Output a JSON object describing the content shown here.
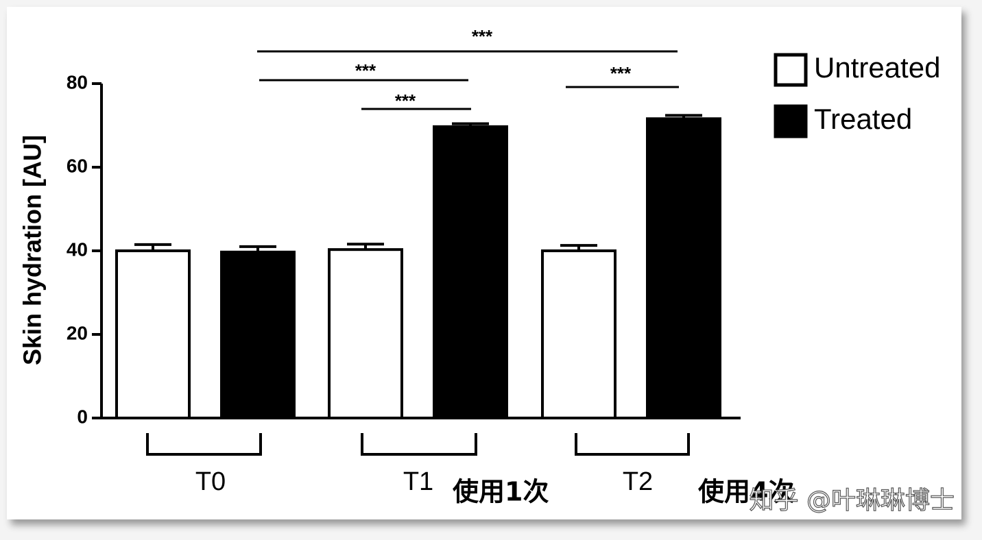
{
  "chart_data": {
    "type": "bar",
    "y_label": "Skin hydration [AU]",
    "categories": [
      "T0",
      "T1",
      "T2"
    ],
    "series": [
      {
        "name": "Untreated",
        "color": "#ffffff",
        "values": [
          40.0,
          40.3,
          40.0
        ],
        "errors": [
          1.5,
          1.3,
          1.3
        ]
      },
      {
        "name": "Treated",
        "color": "#000000",
        "values": [
          39.7,
          69.7,
          71.6
        ],
        "errors": [
          1.3,
          0.7,
          0.8
        ]
      }
    ],
    "ylim": [
      0,
      80
    ],
    "yticks": [
      0,
      20,
      40,
      60,
      80
    ],
    "comparisons": [
      {
        "label": "***"
      },
      {
        "label": "***"
      },
      {
        "label": "***"
      },
      {
        "label": "***"
      }
    ],
    "annotations": [
      "使用1次",
      "使用4次"
    ],
    "watermark": "知乎 @叶琳琳博士"
  }
}
